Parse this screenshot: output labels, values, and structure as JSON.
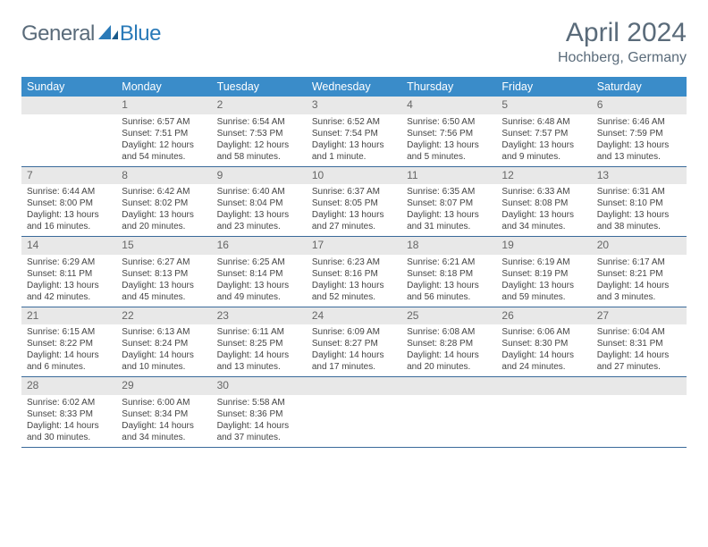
{
  "brand": {
    "part1": "General",
    "part2": "Blue"
  },
  "title": "April 2024",
  "location": "Hochberg, Germany",
  "colors": {
    "header_bg": "#3a8cc9",
    "header_text": "#ffffff",
    "daynum_bg": "#e8e8e8",
    "border": "#3a6a9a",
    "text": "#444444",
    "title_text": "#5a6b7a",
    "logo_gray": "#5a6b7a",
    "logo_blue": "#2a7ab8"
  },
  "dow": [
    "Sunday",
    "Monday",
    "Tuesday",
    "Wednesday",
    "Thursday",
    "Friday",
    "Saturday"
  ],
  "weeks": [
    [
      {
        "n": "",
        "sr": "",
        "ss": "",
        "dl": ""
      },
      {
        "n": "1",
        "sr": "Sunrise: 6:57 AM",
        "ss": "Sunset: 7:51 PM",
        "dl": "Daylight: 12 hours and 54 minutes."
      },
      {
        "n": "2",
        "sr": "Sunrise: 6:54 AM",
        "ss": "Sunset: 7:53 PM",
        "dl": "Daylight: 12 hours and 58 minutes."
      },
      {
        "n": "3",
        "sr": "Sunrise: 6:52 AM",
        "ss": "Sunset: 7:54 PM",
        "dl": "Daylight: 13 hours and 1 minute."
      },
      {
        "n": "4",
        "sr": "Sunrise: 6:50 AM",
        "ss": "Sunset: 7:56 PM",
        "dl": "Daylight: 13 hours and 5 minutes."
      },
      {
        "n": "5",
        "sr": "Sunrise: 6:48 AM",
        "ss": "Sunset: 7:57 PM",
        "dl": "Daylight: 13 hours and 9 minutes."
      },
      {
        "n": "6",
        "sr": "Sunrise: 6:46 AM",
        "ss": "Sunset: 7:59 PM",
        "dl": "Daylight: 13 hours and 13 minutes."
      }
    ],
    [
      {
        "n": "7",
        "sr": "Sunrise: 6:44 AM",
        "ss": "Sunset: 8:00 PM",
        "dl": "Daylight: 13 hours and 16 minutes."
      },
      {
        "n": "8",
        "sr": "Sunrise: 6:42 AM",
        "ss": "Sunset: 8:02 PM",
        "dl": "Daylight: 13 hours and 20 minutes."
      },
      {
        "n": "9",
        "sr": "Sunrise: 6:40 AM",
        "ss": "Sunset: 8:04 PM",
        "dl": "Daylight: 13 hours and 23 minutes."
      },
      {
        "n": "10",
        "sr": "Sunrise: 6:37 AM",
        "ss": "Sunset: 8:05 PM",
        "dl": "Daylight: 13 hours and 27 minutes."
      },
      {
        "n": "11",
        "sr": "Sunrise: 6:35 AM",
        "ss": "Sunset: 8:07 PM",
        "dl": "Daylight: 13 hours and 31 minutes."
      },
      {
        "n": "12",
        "sr": "Sunrise: 6:33 AM",
        "ss": "Sunset: 8:08 PM",
        "dl": "Daylight: 13 hours and 34 minutes."
      },
      {
        "n": "13",
        "sr": "Sunrise: 6:31 AM",
        "ss": "Sunset: 8:10 PM",
        "dl": "Daylight: 13 hours and 38 minutes."
      }
    ],
    [
      {
        "n": "14",
        "sr": "Sunrise: 6:29 AM",
        "ss": "Sunset: 8:11 PM",
        "dl": "Daylight: 13 hours and 42 minutes."
      },
      {
        "n": "15",
        "sr": "Sunrise: 6:27 AM",
        "ss": "Sunset: 8:13 PM",
        "dl": "Daylight: 13 hours and 45 minutes."
      },
      {
        "n": "16",
        "sr": "Sunrise: 6:25 AM",
        "ss": "Sunset: 8:14 PM",
        "dl": "Daylight: 13 hours and 49 minutes."
      },
      {
        "n": "17",
        "sr": "Sunrise: 6:23 AM",
        "ss": "Sunset: 8:16 PM",
        "dl": "Daylight: 13 hours and 52 minutes."
      },
      {
        "n": "18",
        "sr": "Sunrise: 6:21 AM",
        "ss": "Sunset: 8:18 PM",
        "dl": "Daylight: 13 hours and 56 minutes."
      },
      {
        "n": "19",
        "sr": "Sunrise: 6:19 AM",
        "ss": "Sunset: 8:19 PM",
        "dl": "Daylight: 13 hours and 59 minutes."
      },
      {
        "n": "20",
        "sr": "Sunrise: 6:17 AM",
        "ss": "Sunset: 8:21 PM",
        "dl": "Daylight: 14 hours and 3 minutes."
      }
    ],
    [
      {
        "n": "21",
        "sr": "Sunrise: 6:15 AM",
        "ss": "Sunset: 8:22 PM",
        "dl": "Daylight: 14 hours and 6 minutes."
      },
      {
        "n": "22",
        "sr": "Sunrise: 6:13 AM",
        "ss": "Sunset: 8:24 PM",
        "dl": "Daylight: 14 hours and 10 minutes."
      },
      {
        "n": "23",
        "sr": "Sunrise: 6:11 AM",
        "ss": "Sunset: 8:25 PM",
        "dl": "Daylight: 14 hours and 13 minutes."
      },
      {
        "n": "24",
        "sr": "Sunrise: 6:09 AM",
        "ss": "Sunset: 8:27 PM",
        "dl": "Daylight: 14 hours and 17 minutes."
      },
      {
        "n": "25",
        "sr": "Sunrise: 6:08 AM",
        "ss": "Sunset: 8:28 PM",
        "dl": "Daylight: 14 hours and 20 minutes."
      },
      {
        "n": "26",
        "sr": "Sunrise: 6:06 AM",
        "ss": "Sunset: 8:30 PM",
        "dl": "Daylight: 14 hours and 24 minutes."
      },
      {
        "n": "27",
        "sr": "Sunrise: 6:04 AM",
        "ss": "Sunset: 8:31 PM",
        "dl": "Daylight: 14 hours and 27 minutes."
      }
    ],
    [
      {
        "n": "28",
        "sr": "Sunrise: 6:02 AM",
        "ss": "Sunset: 8:33 PM",
        "dl": "Daylight: 14 hours and 30 minutes."
      },
      {
        "n": "29",
        "sr": "Sunrise: 6:00 AM",
        "ss": "Sunset: 8:34 PM",
        "dl": "Daylight: 14 hours and 34 minutes."
      },
      {
        "n": "30",
        "sr": "Sunrise: 5:58 AM",
        "ss": "Sunset: 8:36 PM",
        "dl": "Daylight: 14 hours and 37 minutes."
      },
      {
        "n": "",
        "sr": "",
        "ss": "",
        "dl": ""
      },
      {
        "n": "",
        "sr": "",
        "ss": "",
        "dl": ""
      },
      {
        "n": "",
        "sr": "",
        "ss": "",
        "dl": ""
      },
      {
        "n": "",
        "sr": "",
        "ss": "",
        "dl": ""
      }
    ]
  ]
}
